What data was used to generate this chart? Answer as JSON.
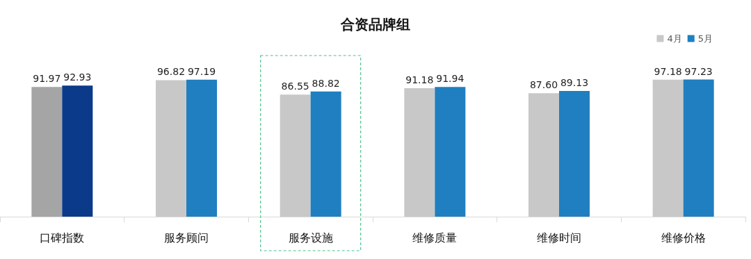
{
  "chart_data": {
    "type": "bar",
    "title": "合资品牌组",
    "categories": [
      "口碑指数",
      "服务顾问",
      "服务设施",
      "维修质量",
      "维修时间",
      "维修价格"
    ],
    "series": [
      {
        "name": "4月",
        "color": "#c8c8c8",
        "colors": [
          "#a5a5a5",
          "#c8c8c8",
          "#c8c8c8",
          "#c8c8c8",
          "#c8c8c8",
          "#c8c8c8"
        ],
        "values": [
          91.97,
          96.82,
          86.55,
          91.18,
          87.6,
          97.18
        ],
        "value_labels": [
          "91.97",
          "96.82",
          "86.55",
          "91.18",
          "87.60",
          "97.18"
        ]
      },
      {
        "name": "5月",
        "color": "#1f7fc0",
        "colors": [
          "#0b3a8a",
          "#1f7fc0",
          "#1f7fc0",
          "#1f7fc0",
          "#1f7fc0",
          "#1f7fc0"
        ],
        "values": [
          92.93,
          97.19,
          88.82,
          91.94,
          89.13,
          97.23
        ],
        "value_labels": [
          "92.93",
          "97.19",
          "88.82",
          "91.94",
          "89.13",
          "97.23"
        ]
      }
    ],
    "tick_labels": "x",
    "grid": false,
    "legend": "top right"
  }
}
